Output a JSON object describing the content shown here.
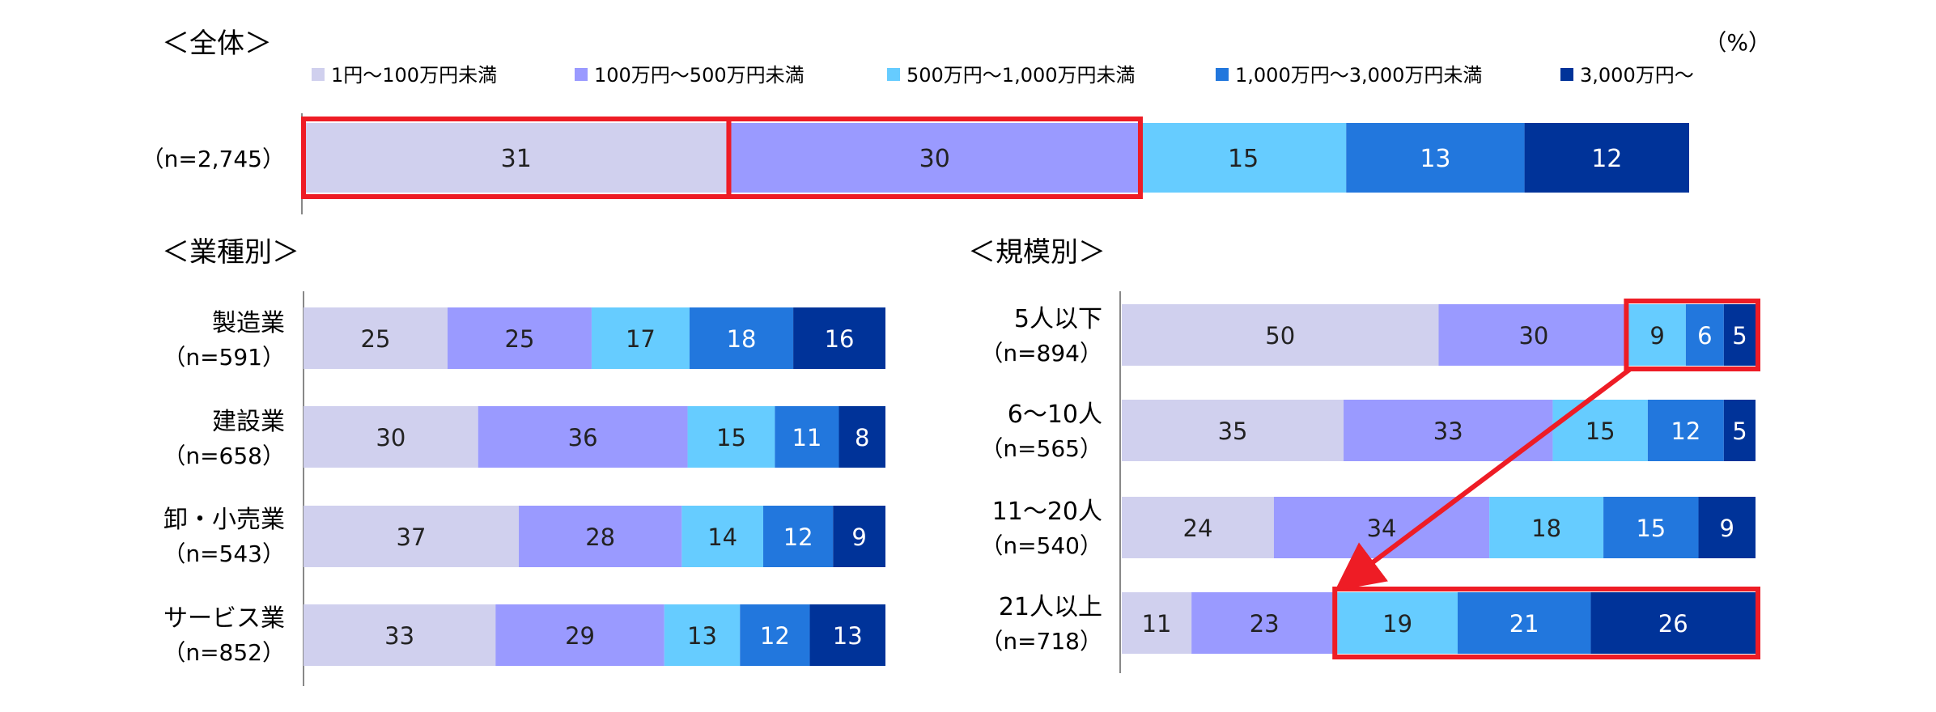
{
  "unit_label": "（%）",
  "legend": [
    {
      "label": "1円～100万円未満",
      "color": "#d0d0ee"
    },
    {
      "label": "100万円～500万円未満",
      "color": "#9a9aff"
    },
    {
      "label": "500万円～1,000万円未満",
      "color": "#66ccff"
    },
    {
      "label": "1,000万円～3,000万円未満",
      "color": "#2277dd"
    },
    {
      "label": "3,000万円～",
      "color": "#003399"
    }
  ],
  "highlight_color": "#ee1c25",
  "chart_data": [
    {
      "type": "bar",
      "orientation": "horizontal",
      "stacked": true,
      "title": "＜全体＞",
      "series_names": [
        "1円～100万円未満",
        "100万円～500万円未満",
        "500万円～1,000万円未満",
        "1,000万円～3,000万円未満",
        "3,000万円～"
      ],
      "rows": [
        {
          "label": "",
          "n": "（n=2,745）",
          "values": [
            31,
            30,
            15,
            13,
            12
          ]
        }
      ]
    },
    {
      "type": "bar",
      "orientation": "horizontal",
      "stacked": true,
      "title": "＜業種別＞",
      "series_names": [
        "1円～100万円未満",
        "100万円～500万円未満",
        "500万円～1,000万円未満",
        "1,000万円～3,000万円未満",
        "3,000万円～"
      ],
      "rows": [
        {
          "label": "製造業",
          "n": "（n=591）",
          "values": [
            25,
            25,
            17,
            18,
            16
          ]
        },
        {
          "label": "建設業",
          "n": "（n=658）",
          "values": [
            30,
            36,
            15,
            11,
            8
          ]
        },
        {
          "label": "卸・小売業",
          "n": "（n=543）",
          "values": [
            37,
            28,
            14,
            12,
            9
          ]
        },
        {
          "label": "サービス業",
          "n": "（n=852）",
          "values": [
            33,
            29,
            13,
            12,
            13
          ]
        }
      ]
    },
    {
      "type": "bar",
      "orientation": "horizontal",
      "stacked": true,
      "title": "＜規模別＞",
      "series_names": [
        "1円～100万円未満",
        "100万円～500万円未満",
        "500万円～1,000万円未満",
        "1,000万円～3,000万円未満",
        "3,000万円～"
      ],
      "rows": [
        {
          "label": "5人以下",
          "n": "（n=894）",
          "values": [
            50,
            30,
            9,
            6,
            5
          ]
        },
        {
          "label": "6～10人",
          "n": "（n=565）",
          "values": [
            35,
            33,
            15,
            12,
            5
          ]
        },
        {
          "label": "11～20人",
          "n": "（n=540）",
          "values": [
            24,
            34,
            18,
            15,
            9
          ]
        },
        {
          "label": "21人以上",
          "n": "（n=718）",
          "values": [
            11,
            23,
            19,
            21,
            26
          ]
        }
      ]
    }
  ]
}
